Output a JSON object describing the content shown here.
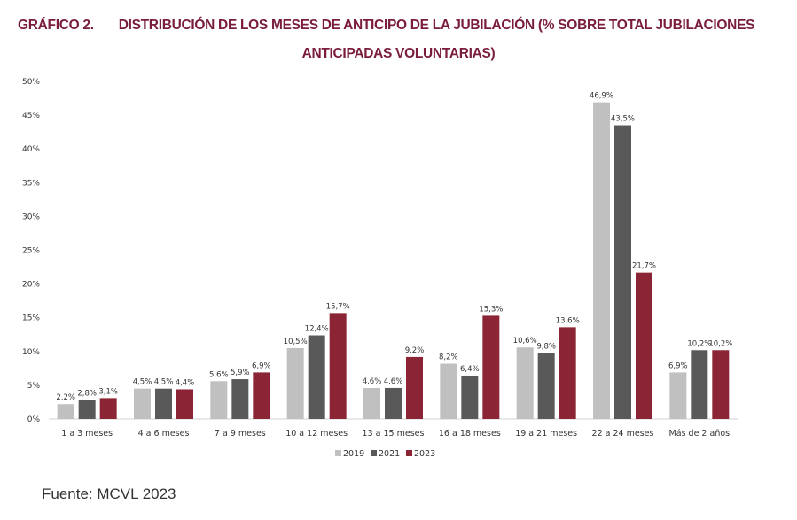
{
  "title": {
    "number": "GRÁFICO 2.",
    "line1": "DISTRIBUCIÓN DE LOS MESES DE ANTICIPO DE LA JUBILACIÓN (% SOBRE TOTAL JUBILACIONES",
    "line2": "ANTICIPADAS VOLUNTARIAS)"
  },
  "source": "Fuente: MCVL 2023",
  "chart_data": {
    "type": "bar",
    "categories": [
      "1 a 3 meses",
      "4 a 6 meses",
      "7 a 9 meses",
      "10 a 12 meses",
      "13 a 15 meses",
      "16 a 18 meses",
      "19 a 21 meses",
      "22 a 24 meses",
      "Más de 2 años"
    ],
    "series": [
      {
        "name": "2019",
        "color": "#c0c0c0",
        "values": [
          2.2,
          4.5,
          5.6,
          10.5,
          4.6,
          8.2,
          10.6,
          46.9,
          6.9
        ],
        "labels": [
          "2,2%",
          "4,5%",
          "5,6%",
          "10,5%",
          "4,6%",
          "8,2%",
          "10,6%",
          "46,9%",
          "6,9%"
        ]
      },
      {
        "name": "2021",
        "color": "#595959",
        "values": [
          2.8,
          4.5,
          5.9,
          12.4,
          4.6,
          6.4,
          9.8,
          43.5,
          10.2
        ],
        "labels": [
          "2,8%",
          "4,5%",
          "5,9%",
          "12,4%",
          "4,6%",
          "6,4%",
          "9,8%",
          "43,5%",
          "10,2%"
        ]
      },
      {
        "name": "2023",
        "color": "#8b2535",
        "values": [
          3.1,
          4.4,
          6.9,
          15.7,
          9.2,
          15.3,
          13.6,
          21.7,
          10.2
        ],
        "labels": [
          "3,1%",
          "4,4%",
          "6,9%",
          "15,7%",
          "9,2%",
          "15,3%",
          "13,6%",
          "21,7%",
          "10,2%"
        ]
      }
    ],
    "yticks": [
      "0%",
      "5%",
      "10%",
      "15%",
      "20%",
      "25%",
      "30%",
      "35%",
      "40%",
      "45%",
      "50%"
    ],
    "ylim": [
      0,
      50
    ],
    "grid": false,
    "legend": "bottom"
  }
}
